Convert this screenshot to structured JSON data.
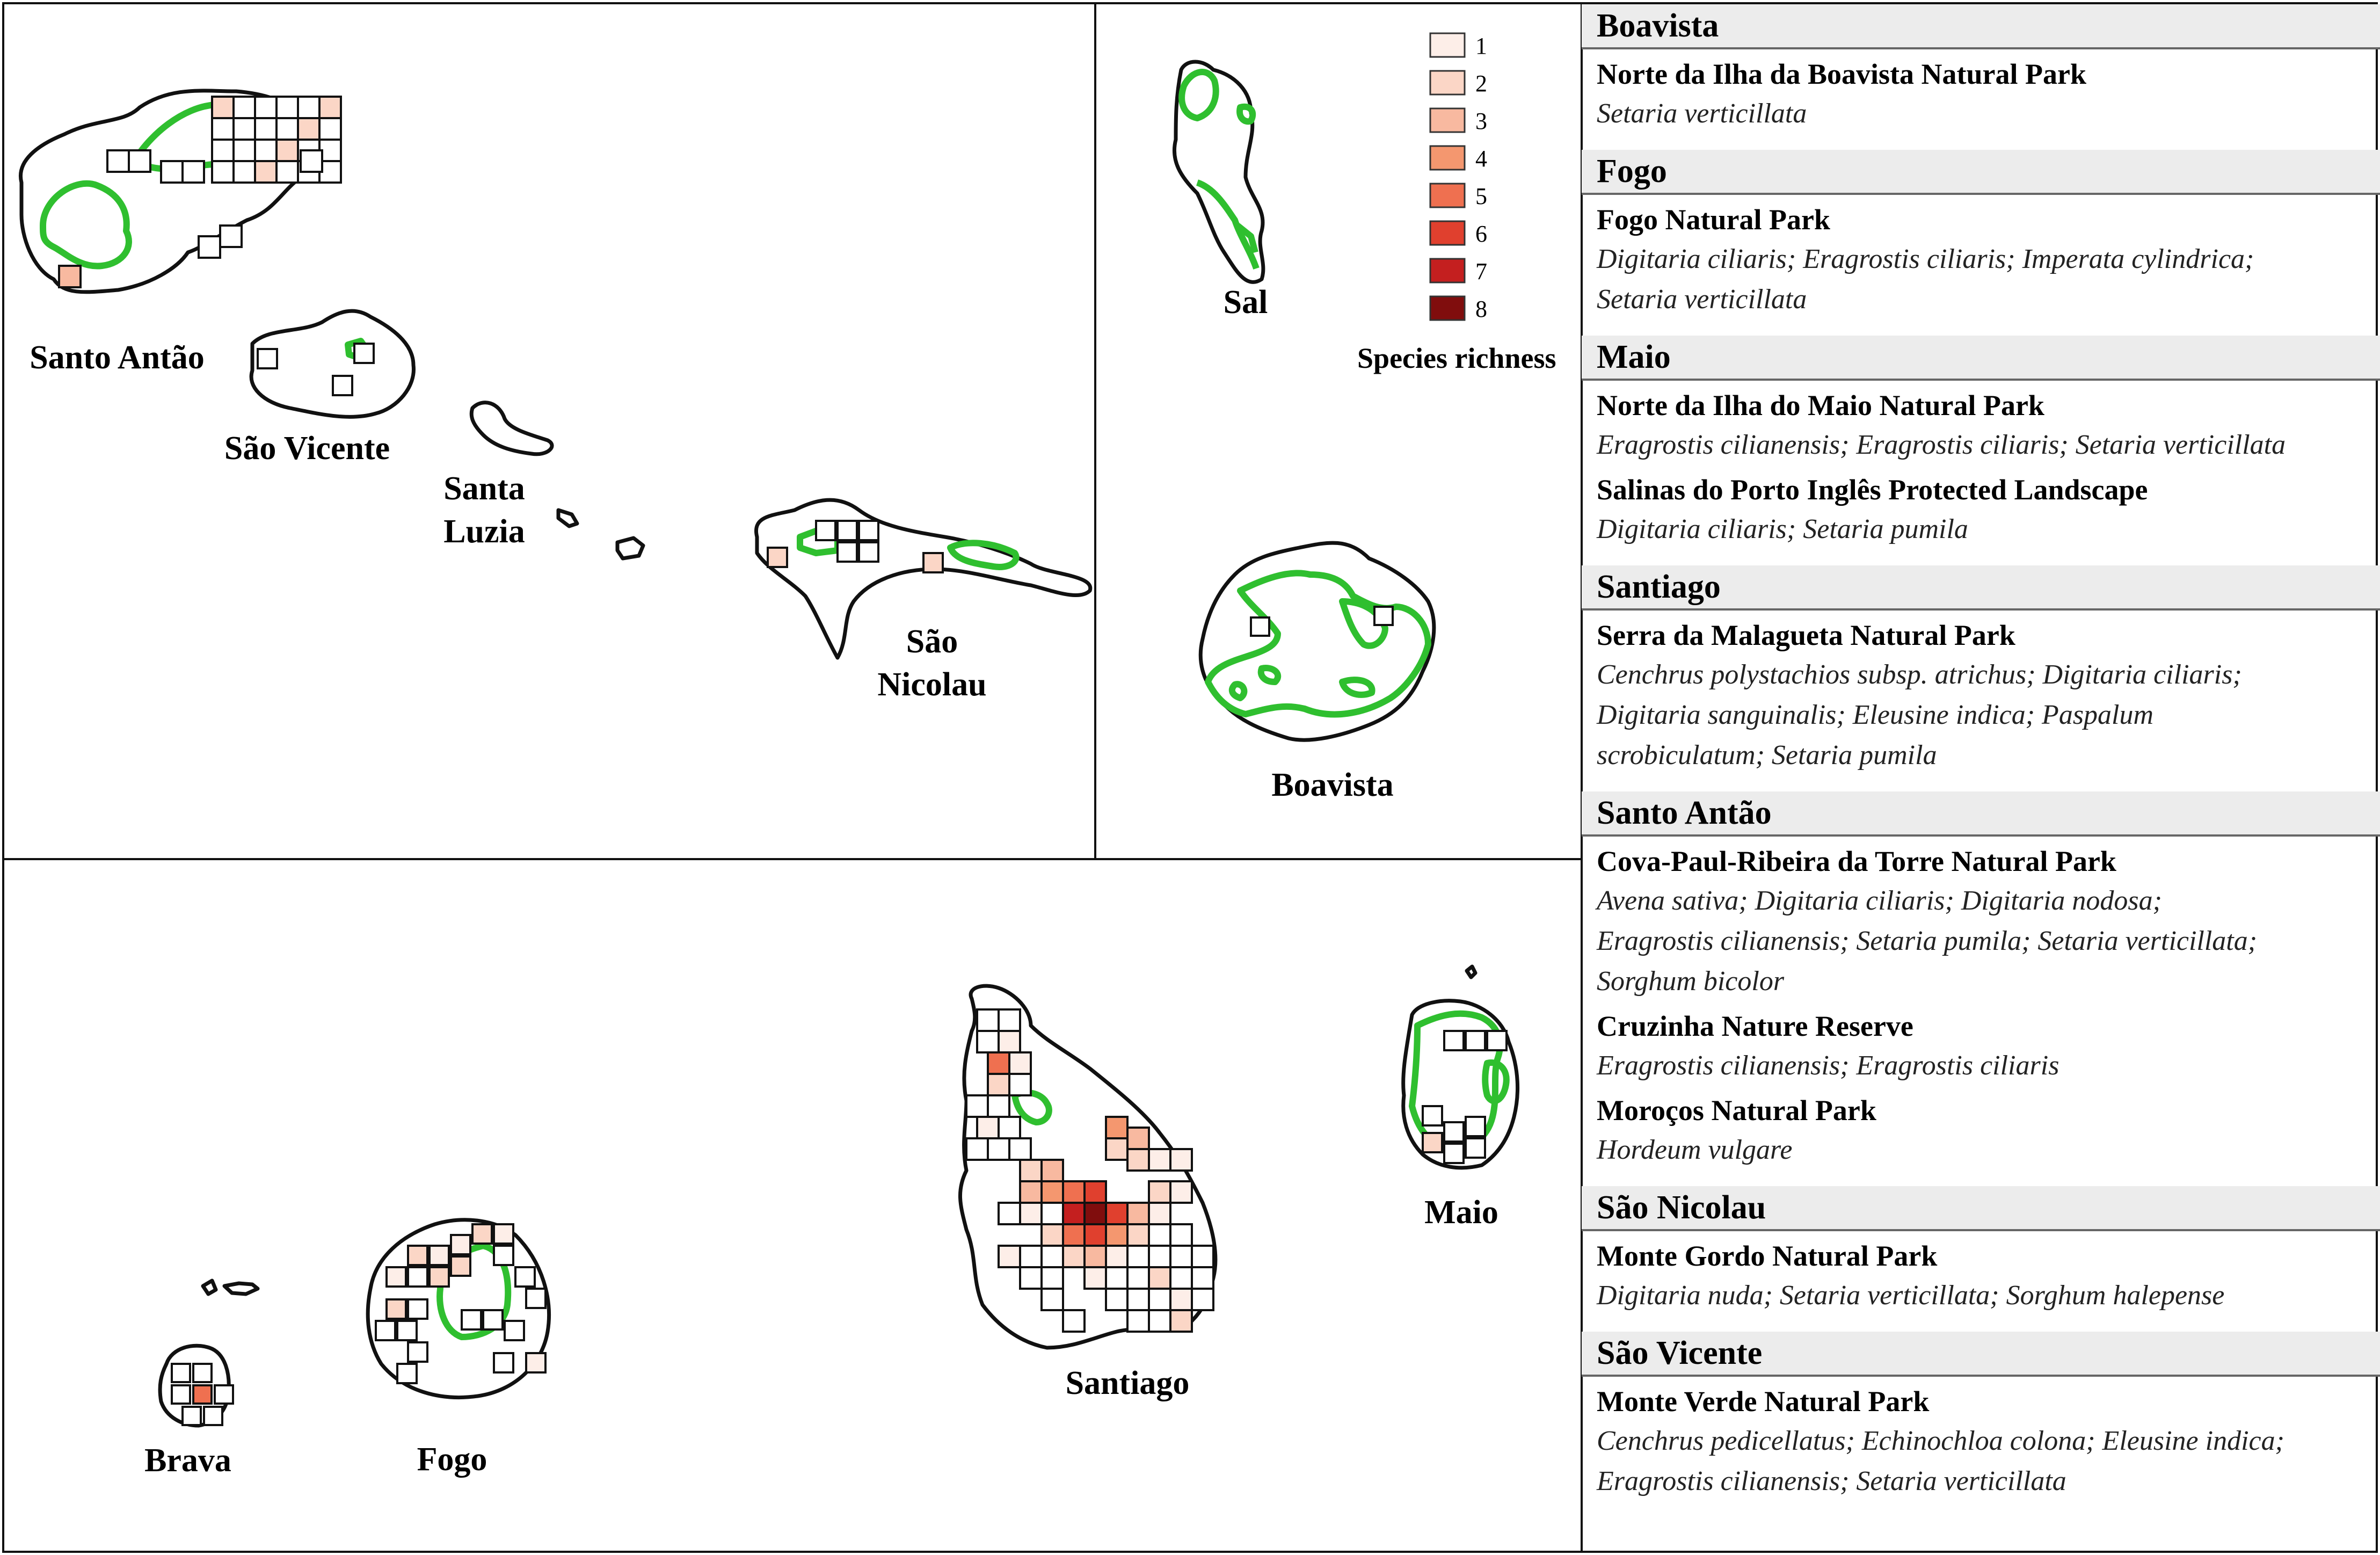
{
  "map": {
    "islands": [
      {
        "id": "santo-antao",
        "name": "Santo Antão"
      },
      {
        "id": "sao-vicente",
        "name": "São Vicente"
      },
      {
        "id": "santa-luzia",
        "name": "Santa Luzia",
        "lines": [
          "Santa",
          "Luzia"
        ]
      },
      {
        "id": "sao-nicolau",
        "name": "São Nicolau",
        "lines": [
          "São",
          "Nicolau"
        ]
      },
      {
        "id": "sal",
        "name": "Sal"
      },
      {
        "id": "boavista",
        "name": "Boavista"
      },
      {
        "id": "santiago",
        "name": "Santiago"
      },
      {
        "id": "maio",
        "name": "Maio"
      },
      {
        "id": "brava",
        "name": "Brava"
      },
      {
        "id": "fogo",
        "name": "Fogo"
      }
    ],
    "legend": {
      "title": "Species richness",
      "classes": [
        {
          "value": "1",
          "color": "#fdeee8"
        },
        {
          "value": "2",
          "color": "#fbd6c6"
        },
        {
          "value": "3",
          "color": "#f8b9a0"
        },
        {
          "value": "4",
          "color": "#f4976f"
        },
        {
          "value": "5",
          "color": "#ef7050"
        },
        {
          "value": "6",
          "color": "#e0402e"
        },
        {
          "value": "7",
          "color": "#c41f1f"
        },
        {
          "value": "8",
          "color": "#800d0d"
        }
      ]
    },
    "protected_area_color": "#2fbf2f"
  },
  "panel": {
    "groups": [
      {
        "island": "Boavista",
        "parks": [
          {
            "name": "Norte da Ilha da Boavista Natural Park",
            "species": [
              "Setaria verticillata"
            ]
          }
        ]
      },
      {
        "island": "Fogo",
        "parks": [
          {
            "name": "Fogo Natural Park",
            "species": [
              "Digitaria ciliaris; Eragrostis ciliaris; Imperata cylindrica;",
              "Setaria verticillata"
            ]
          }
        ]
      },
      {
        "island": "Maio",
        "parks": [
          {
            "name": "Norte da Ilha do Maio Natural Park",
            "species": [
              "Eragrostis cilianensis; Eragrostis ciliaris; Setaria verticillata"
            ]
          },
          {
            "name": "Salinas do Porto Inglês Protected Landscape",
            "species": [
              "Digitaria ciliaris; Setaria pumila"
            ]
          }
        ]
      },
      {
        "island": "Santiago",
        "parks": [
          {
            "name": "Serra da Malagueta Natural Park",
            "species": [
              "Cenchrus polystachios subsp. atrichus; Digitaria ciliaris;",
              "Digitaria sanguinalis; Eleusine indica; Paspalum",
              "scrobiculatum; Setaria pumila"
            ]
          }
        ]
      },
      {
        "island": "Santo Antão",
        "parks": [
          {
            "name": "Cova-Paul-Ribeira da Torre Natural Park",
            "species": [
              "Avena sativa; Digitaria ciliaris; Digitaria nodosa;",
              "Eragrostis cilianensis; Setaria pumila; Setaria verticillata;",
              "Sorghum bicolor"
            ]
          },
          {
            "name": "Cruzinha Nature Reserve",
            "species": [
              "Eragrostis cilianensis; Eragrostis ciliaris"
            ]
          },
          {
            "name": "Moroços Natural Park",
            "species": [
              "Hordeum vulgare"
            ]
          }
        ]
      },
      {
        "island": "São Nicolau",
        "parks": [
          {
            "name": "Monte Gordo Natural Park",
            "species": [
              "Digitaria nuda; Setaria verticillata; Sorghum halepense"
            ]
          }
        ]
      },
      {
        "island": "São Vicente",
        "parks": [
          {
            "name": "Monte Verde Natural Park",
            "species": [
              "Cenchrus pedicellatus; Echinochloa colona; Eleusine indica;",
              "Eragrostis cilianensis; Setaria verticillata"
            ]
          }
        ]
      }
    ]
  }
}
